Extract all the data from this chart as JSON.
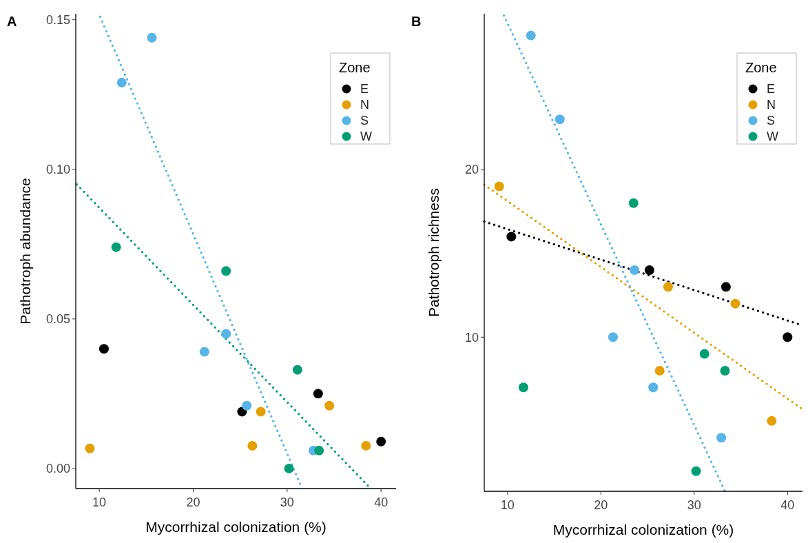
{
  "chart_data": [
    {
      "type": "scatter",
      "title": "A",
      "xlabel": "Mycorrhizal colonization (%)",
      "ylabel": "Pathotroph abundance",
      "legend_title": "Zone",
      "legend": "top right",
      "marker": "circle",
      "xlim": [
        7.5,
        41.6
      ],
      "ylim": [
        -0.0067,
        0.152
      ],
      "xticks": [
        10,
        20,
        30,
        40
      ],
      "yticks": [
        {
          "value": 0,
          "label": "0.00"
        },
        {
          "value": 0.05,
          "label": "0.05"
        },
        {
          "value": 0.1,
          "label": "0.10"
        },
        {
          "value": 0.15,
          "label": "0.15"
        }
      ],
      "series": [
        {
          "name": "E",
          "color": "#000000",
          "x": [
            10.5,
            25.2,
            33.3,
            40.0
          ],
          "values": [
            0.04,
            0.019,
            0.025,
            0.009
          ]
        },
        {
          "name": "N",
          "color": "#e69f00",
          "x": [
            9.0,
            26.3,
            27.2,
            34.5,
            38.4
          ],
          "values": [
            0.0067,
            0.0076,
            0.019,
            0.021,
            0.0076
          ]
        },
        {
          "name": "S",
          "color": "#56b4e9",
          "x": [
            15.6,
            12.4,
            21.2,
            23.5,
            25.7,
            32.8
          ],
          "values": [
            0.144,
            0.129,
            0.039,
            0.045,
            0.021,
            0.006
          ]
        },
        {
          "name": "W",
          "color": "#009e73",
          "x": [
            11.8,
            23.5,
            31.1,
            30.2,
            33.4
          ],
          "values": [
            0.074,
            0.066,
            0.033,
            0.0,
            0.006
          ]
        },
        {
          "type": "line",
          "line_style": "dotted",
          "marker": "none",
          "color": "#56b4e9",
          "x": [
            10.1,
            31.6
          ],
          "values": [
            0.151,
            -0.0067
          ]
        },
        {
          "type": "line",
          "line_style": "dotted",
          "marker": "none",
          "color": "#009e73",
          "x": [
            7.6,
            38.9
          ],
          "values": [
            0.095,
            -0.0067
          ]
        }
      ]
    },
    {
      "type": "scatter",
      "title": "B",
      "xlabel": "Mycorrhizal colonization (%)",
      "ylabel": "Pathotroph richness",
      "legend_title": "Zone",
      "legend": "top right",
      "marker": "circle",
      "xlim": [
        7.5,
        41.6
      ],
      "ylim": [
        0.8,
        29.3
      ],
      "xticks": [
        10,
        20,
        30,
        40
      ],
      "yticks": [
        10,
        20
      ],
      "series": [
        {
          "name": "E",
          "color": "#000000",
          "x": [
            10.4,
            25.2,
            33.4,
            40.0
          ],
          "values": [
            16,
            14,
            13,
            10
          ]
        },
        {
          "name": "N",
          "color": "#e69f00",
          "x": [
            9.1,
            27.2,
            34.4,
            26.3,
            38.3
          ],
          "values": [
            19,
            13,
            12,
            8,
            5
          ]
        },
        {
          "name": "S",
          "color": "#56b4e9",
          "x": [
            12.5,
            15.6,
            23.6,
            21.3,
            25.6,
            32.9
          ],
          "values": [
            28,
            23,
            14,
            10,
            7,
            4
          ]
        },
        {
          "name": "W",
          "color": "#009e73",
          "x": [
            23.5,
            11.7,
            31.1,
            33.3,
            30.2
          ],
          "values": [
            18,
            7,
            9,
            8,
            2
          ]
        },
        {
          "type": "line",
          "line_style": "dotted",
          "marker": "none",
          "color": "#000000",
          "x": [
            7.5,
            41.6
          ],
          "values": [
            16.9,
            10.7
          ]
        },
        {
          "type": "line",
          "line_style": "dotted",
          "marker": "none",
          "color": "#e69f00",
          "x": [
            7.5,
            41.6
          ],
          "values": [
            19.1,
            5.7
          ]
        },
        {
          "type": "line",
          "line_style": "dotted",
          "marker": "none",
          "color": "#56b4e9",
          "x": [
            9.6,
            33.3
          ],
          "values": [
            29.2,
            0.8
          ]
        }
      ]
    }
  ]
}
